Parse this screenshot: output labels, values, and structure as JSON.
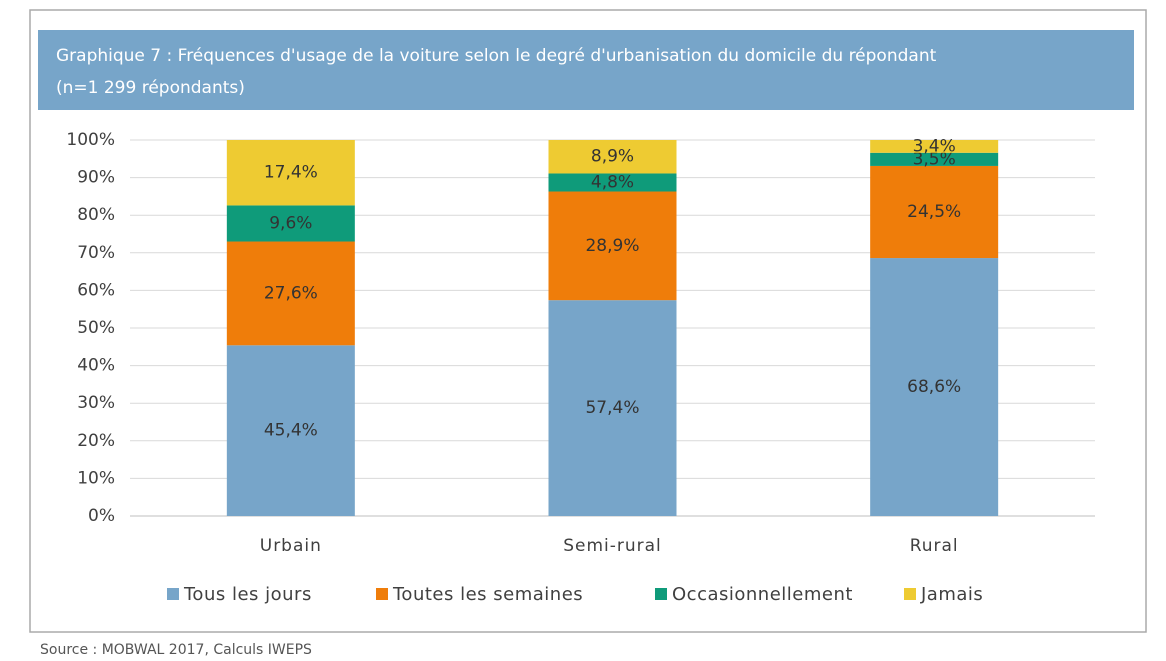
{
  "chart_data": {
    "type": "stacked_bar",
    "title": "Graphique 7 : Fréquences d'usage de la voiture selon le degré d'urbanisation du domicile du répondant",
    "subtitle": "(n=1 299 répondants)",
    "source": "Source :  MOBWAL 2017, Calculs IWEPS",
    "categories": [
      "Urbain",
      "Semi-rural",
      "Rural"
    ],
    "series": [
      {
        "name": "Tous les jours",
        "color": "#77a5c9",
        "values": [
          45.4,
          57.4,
          68.6
        ],
        "value_labels": [
          "45,4%",
          "57,4%",
          "68,6%"
        ]
      },
      {
        "name": "Toutes les semaines",
        "color": "#ef7d0a",
        "values": [
          27.6,
          28.9,
          24.5
        ],
        "value_labels": [
          "27,6%",
          "28,9%",
          "24,5%"
        ]
      },
      {
        "name": "Occasionnellement",
        "color": "#0f9b7a",
        "values": [
          9.6,
          4.8,
          3.5
        ],
        "value_labels": [
          "9,6%",
          "4,8%",
          "3,5%"
        ]
      },
      {
        "name": "Jamais",
        "color": "#eecb32",
        "values": [
          17.4,
          8.9,
          3.4
        ],
        "value_labels": [
          "17,4%",
          "8,9%",
          "3,4%"
        ]
      }
    ],
    "ylim": [
      0,
      100
    ],
    "yticks": [
      {
        "value": 0,
        "label": "0%"
      },
      {
        "value": 10,
        "label": "10%"
      },
      {
        "value": 20,
        "label": "20%"
      },
      {
        "value": 30,
        "label": "30%"
      },
      {
        "value": 40,
        "label": "40%"
      },
      {
        "value": 50,
        "label": "50%"
      },
      {
        "value": 60,
        "label": "60%"
      },
      {
        "value": 70,
        "label": "70%"
      },
      {
        "value": 80,
        "label": "80%"
      },
      {
        "value": 90,
        "label": "90%"
      },
      {
        "value": 100,
        "label": "100%"
      }
    ],
    "grid": true
  }
}
